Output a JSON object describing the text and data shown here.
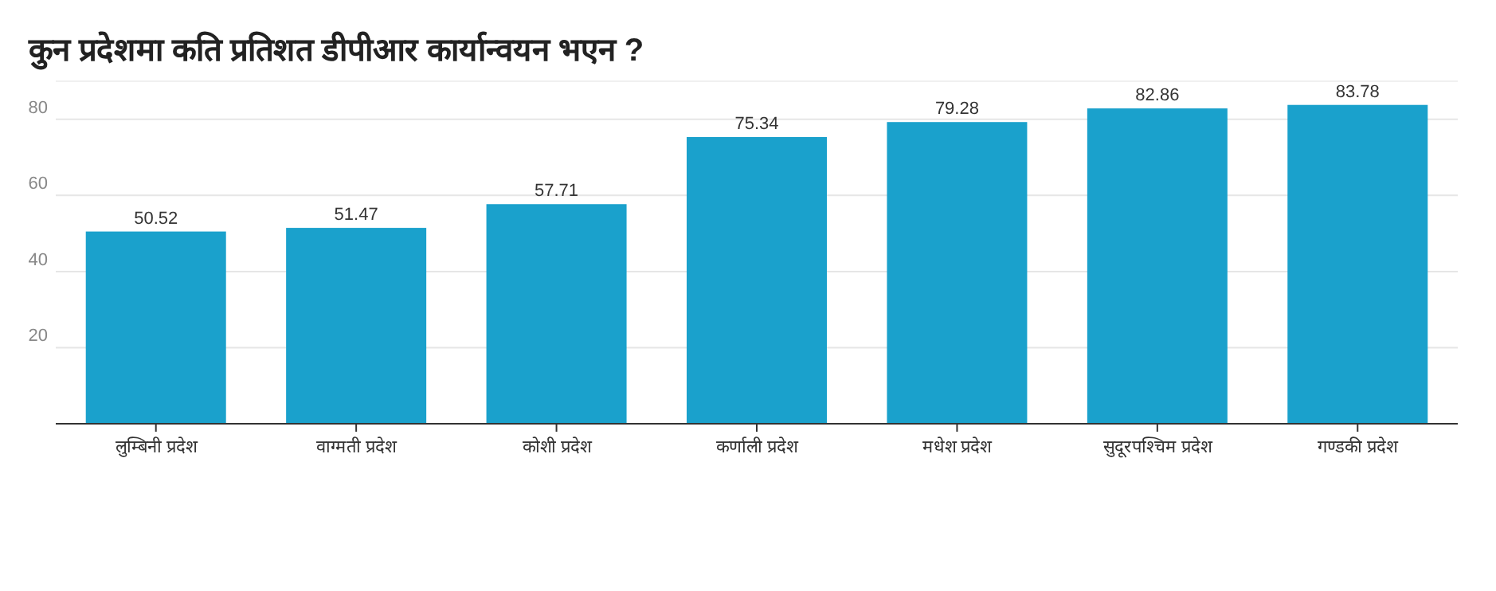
{
  "chart_data": {
    "type": "bar",
    "title": "कुन प्रदेशमा कति प्रतिशत डीपीआर कार्यान्वयन भएन ?",
    "categories": [
      "लुम्बिनी प्रदेश",
      "वाग्मती प्रदेश",
      "कोशी प्रदेश",
      "कर्णाली प्रदेश",
      "मधेश प्रदेश",
      "सुदूरपश्चिम प्रदेश",
      "गण्डकी प्रदेश"
    ],
    "values": [
      50.52,
      51.47,
      57.71,
      75.34,
      79.28,
      82.86,
      83.78
    ],
    "color": "#1aa1cc",
    "ylim": [
      0,
      90
    ],
    "yticks": [
      20,
      40,
      60,
      80
    ],
    "grid": "y",
    "data_labels": true
  }
}
